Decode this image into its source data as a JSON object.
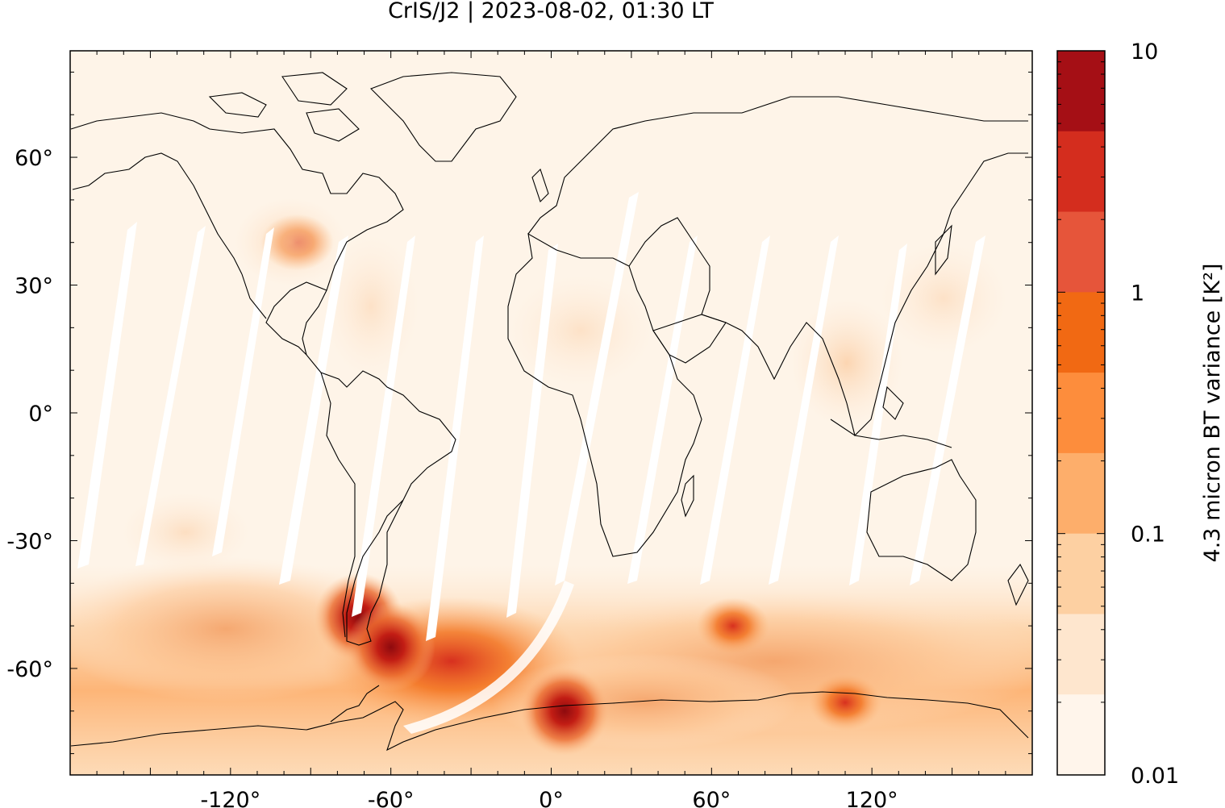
{
  "title": "CrIS/J2 | 2023-08-02, 01:30 LT",
  "map": {
    "projection": "equirectangular",
    "lon_range": [
      -180,
      180
    ],
    "lat_range": [
      -85,
      85
    ],
    "x_ticks": [
      {
        "value": -120,
        "label": "-120°"
      },
      {
        "value": -60,
        "label": "-60°"
      },
      {
        "value": 0,
        "label": "0°"
      },
      {
        "value": 60,
        "label": "60°"
      },
      {
        "value": 120,
        "label": "120°"
      }
    ],
    "y_ticks": [
      {
        "value": 60,
        "label": "60°"
      },
      {
        "value": 30,
        "label": "30°"
      },
      {
        "value": 0,
        "label": "0°"
      },
      {
        "value": -30,
        "label": "-30°"
      },
      {
        "value": -60,
        "label": "-60°"
      }
    ],
    "field_hotspots": [
      {
        "lon": -72,
        "lat": -48,
        "value": 10,
        "desc_ref": "southern-andes"
      },
      {
        "lon": -60,
        "lat": -55,
        "value": 5
      },
      {
        "lon": 5,
        "lat": -70,
        "value": 8
      },
      {
        "lon": 110,
        "lat": -68,
        "value": 4
      },
      {
        "lon": 68,
        "lat": -50,
        "value": 3
      },
      {
        "lon": -95,
        "lat": 40,
        "value": 0.3
      }
    ]
  },
  "colorbar": {
    "label": "4.3 micron BT variance [K²]",
    "scale": "log",
    "range": [
      0.01,
      10
    ],
    "tick_labels": [
      {
        "value": 10,
        "label": "10"
      },
      {
        "value": 1,
        "label": "1"
      },
      {
        "value": 0.1,
        "label": "0.1"
      },
      {
        "value": 0.01,
        "label": "0.01"
      }
    ],
    "colors": [
      "#fff5eb",
      "#fee6ce",
      "#fdd0a2",
      "#fdae6b",
      "#fd8d3c",
      "#f16913",
      "#e6553a",
      "#d42d1e",
      "#a50f15"
    ]
  }
}
